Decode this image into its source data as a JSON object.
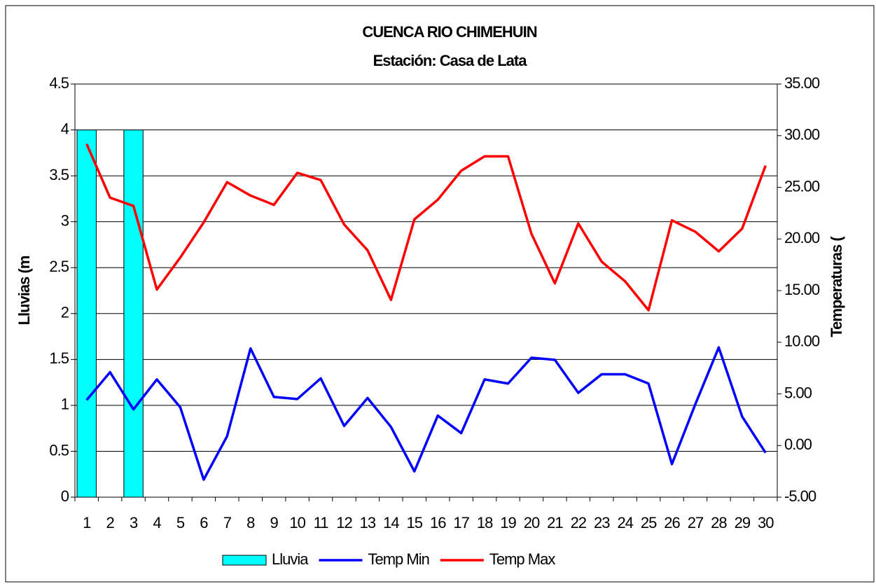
{
  "chart_data": {
    "type": "bar_line",
    "title": "CUENCA RIO CHIMEHUIN",
    "subtitle": "Estación: Casa de Lata",
    "y_label": "Lluvias (m",
    "y2_label": "Temperaturas (",
    "categories": [
      "1",
      "2",
      "3",
      "4",
      "5",
      "6",
      "7",
      "8",
      "9",
      "10",
      "11",
      "12",
      "13",
      "14",
      "15",
      "16",
      "17",
      "18",
      "19",
      "20",
      "21",
      "22",
      "23",
      "24",
      "25",
      "26",
      "27",
      "28",
      "29",
      "30"
    ],
    "series": [
      {
        "name": "Lluvia",
        "type": "bar",
        "color": "#00ffff",
        "values": [
          4,
          0,
          4,
          0,
          0,
          0,
          0,
          0,
          0,
          0,
          0,
          0,
          0,
          0,
          0,
          0,
          0,
          0,
          0,
          0,
          0,
          0,
          0,
          0,
          0,
          0,
          0,
          0,
          0,
          0
        ]
      },
      {
        "name": "Temp Min",
        "type": "line",
        "axis": "y2",
        "color": "#0000ff",
        "values": [
          4.4,
          7.1,
          3.5,
          6.4,
          3.7,
          -3.3,
          0.9,
          9.4,
          4.7,
          4.5,
          6.5,
          1.9,
          4.6,
          1.8,
          -2.5,
          2.9,
          1.2,
          6.4,
          6.0,
          8.5,
          8.3,
          5.1,
          6.9,
          6.9,
          6.0,
          -1.8,
          4.0,
          9.5,
          2.8,
          -0.7
        ]
      },
      {
        "name": "Temp Max",
        "type": "line",
        "axis": "y2",
        "color": "#ff0000",
        "values": [
          29.2,
          24.0,
          23.2,
          15.1,
          18.2,
          21.6,
          25.5,
          24.2,
          23.3,
          26.4,
          25.7,
          21.4,
          18.9,
          14.1,
          21.9,
          23.8,
          26.6,
          28.0,
          28.0,
          20.5,
          15.7,
          21.5,
          17.8,
          15.9,
          13.1,
          21.8,
          20.7,
          18.8,
          21.0,
          27.1
        ]
      }
    ],
    "ylim": [
      0,
      4.5
    ],
    "yticks": [
      0,
      0.5,
      1,
      1.5,
      2,
      2.5,
      3,
      3.5,
      4,
      4.5
    ],
    "y2lim": [
      -5,
      35
    ],
    "y2ticks": [
      {
        "value": -5,
        "label": "-5.00"
      },
      {
        "value": 0,
        "label": "0.00"
      },
      {
        "value": 5,
        "label": "5.00"
      },
      {
        "value": 10,
        "label": "10.00"
      },
      {
        "value": 15,
        "label": "15.00"
      },
      {
        "value": 20,
        "label": "20.00"
      },
      {
        "value": 25,
        "label": "25.00"
      },
      {
        "value": 30,
        "label": "30.00"
      },
      {
        "value": 35,
        "label": "35.00"
      }
    ],
    "grid": true,
    "legend": "bottom"
  }
}
